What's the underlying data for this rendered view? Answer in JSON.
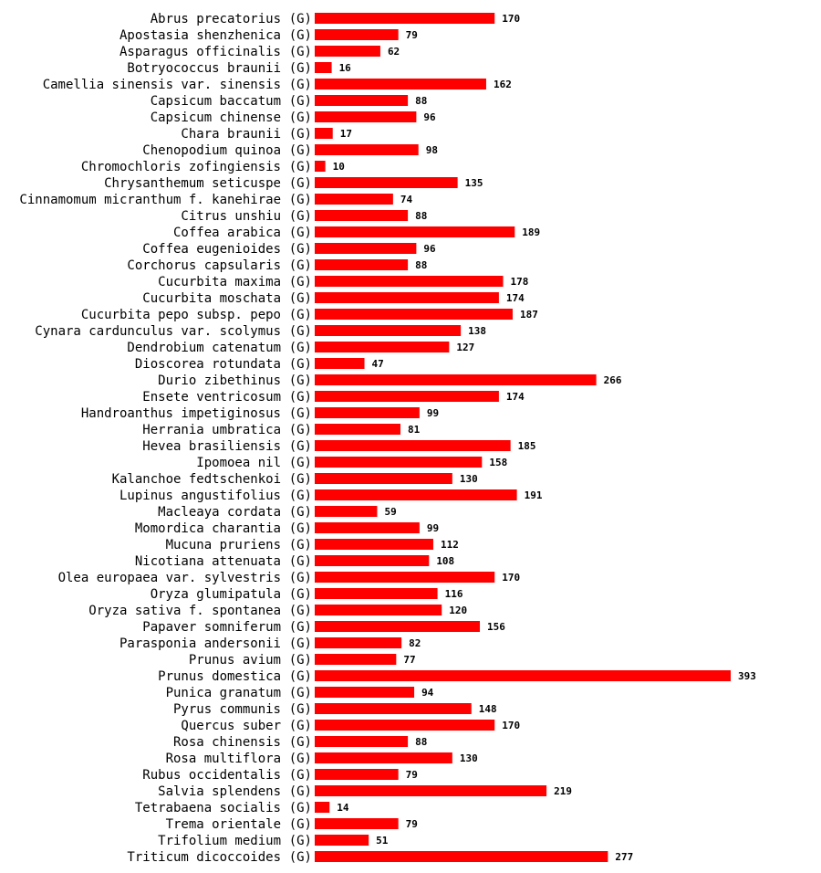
{
  "chart_data": {
    "type": "bar",
    "orientation": "horizontal",
    "title": "",
    "xlabel": "",
    "ylabel": "",
    "xlim": [
      0,
      393
    ],
    "bar_color": "#ff0000",
    "tag": "(G)",
    "categories": [
      "Abrus precatorius",
      "Apostasia shenzhenica",
      "Asparagus officinalis",
      "Botryococcus braunii",
      "Camellia sinensis var. sinensis",
      "Capsicum baccatum",
      "Capsicum chinense",
      "Chara braunii",
      "Chenopodium quinoa",
      "Chromochloris zofingiensis",
      "Chrysanthemum seticuspe",
      "Cinnamomum micranthum f. kanehirae",
      "Citrus unshiu",
      "Coffea arabica",
      "Coffea eugenioides",
      "Corchorus capsularis",
      "Cucurbita maxima",
      "Cucurbita moschata",
      "Cucurbita pepo subsp. pepo",
      "Cynara cardunculus var. scolymus",
      "Dendrobium catenatum",
      "Dioscorea rotundata",
      "Durio zibethinus",
      "Ensete ventricosum",
      "Handroanthus impetiginosus",
      "Herrania umbratica",
      "Hevea brasiliensis",
      "Ipomoea nil",
      "Kalanchoe fedtschenkoi",
      "Lupinus angustifolius",
      "Macleaya cordata",
      "Momordica charantia",
      "Mucuna pruriens",
      "Nicotiana attenuata",
      "Olea europaea var. sylvestris",
      "Oryza glumipatula",
      "Oryza sativa f. spontanea",
      "Papaver somniferum",
      "Parasponia andersonii",
      "Prunus avium",
      "Prunus domestica",
      "Punica granatum",
      "Pyrus communis",
      "Quercus suber",
      "Rosa chinensis",
      "Rosa multiflora",
      "Rubus occidentalis",
      "Salvia splendens",
      "Tetrabaena socialis",
      "Trema orientale",
      "Trifolium medium",
      "Triticum dicoccoides"
    ],
    "values": [
      170,
      79,
      62,
      16,
      162,
      88,
      96,
      17,
      98,
      10,
      135,
      74,
      88,
      189,
      96,
      88,
      178,
      174,
      187,
      138,
      127,
      47,
      266,
      174,
      99,
      81,
      185,
      158,
      130,
      191,
      59,
      99,
      112,
      108,
      170,
      116,
      120,
      156,
      82,
      77,
      393,
      94,
      148,
      170,
      88,
      130,
      79,
      219,
      14,
      79,
      51,
      277
    ]
  }
}
